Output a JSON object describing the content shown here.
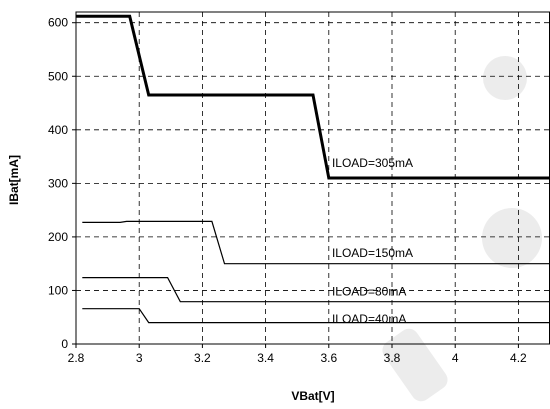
{
  "chart_data": {
    "type": "line",
    "title": "",
    "xlabel": "VBat[V]",
    "ylabel": "IBat[mA]",
    "xlim": [
      2.8,
      4.3
    ],
    "ylim": [
      0,
      620
    ],
    "x_ticks": [
      2.8,
      3.0,
      3.2,
      3.4,
      3.6,
      3.8,
      4.0,
      4.2
    ],
    "x_tick_labels": [
      "2.8",
      "3",
      "3.2",
      "3.4",
      "3.6",
      "3.8",
      "4",
      "4.2"
    ],
    "y_ticks": [
      0,
      100,
      200,
      300,
      400,
      500,
      600
    ],
    "y_tick_labels": [
      "0",
      "100",
      "200",
      "300",
      "400",
      "500",
      "600"
    ],
    "grid": true,
    "legend": "none",
    "series_color": "#000000",
    "series": [
      {
        "name": "ILOAD=305mA",
        "label_pos": [
          3.61,
          338
        ],
        "bold": true,
        "x": [
          2.8,
          2.97,
          3.03,
          3.55,
          3.6,
          4.3
        ],
        "y": [
          612,
          612,
          465,
          465,
          310,
          310
        ]
      },
      {
        "name": "ILOAD=150mA",
        "label_pos": [
          3.61,
          170
        ],
        "bold": false,
        "x": [
          2.82,
          2.94,
          2.96,
          3.23,
          3.27,
          4.3
        ],
        "y": [
          227,
          227,
          229,
          229,
          150,
          150
        ]
      },
      {
        "name": "ILOAD=80mA",
        "label_pos": [
          3.61,
          98
        ],
        "bold": false,
        "x": [
          2.82,
          3.09,
          3.13,
          4.3
        ],
        "y": [
          124,
          124,
          79,
          79
        ]
      },
      {
        "name": "ILOAD=40mA",
        "label_pos": [
          3.61,
          47
        ],
        "bold": false,
        "x": [
          2.82,
          3.0,
          3.03,
          4.3
        ],
        "y": [
          66,
          66,
          40,
          40
        ]
      }
    ]
  }
}
